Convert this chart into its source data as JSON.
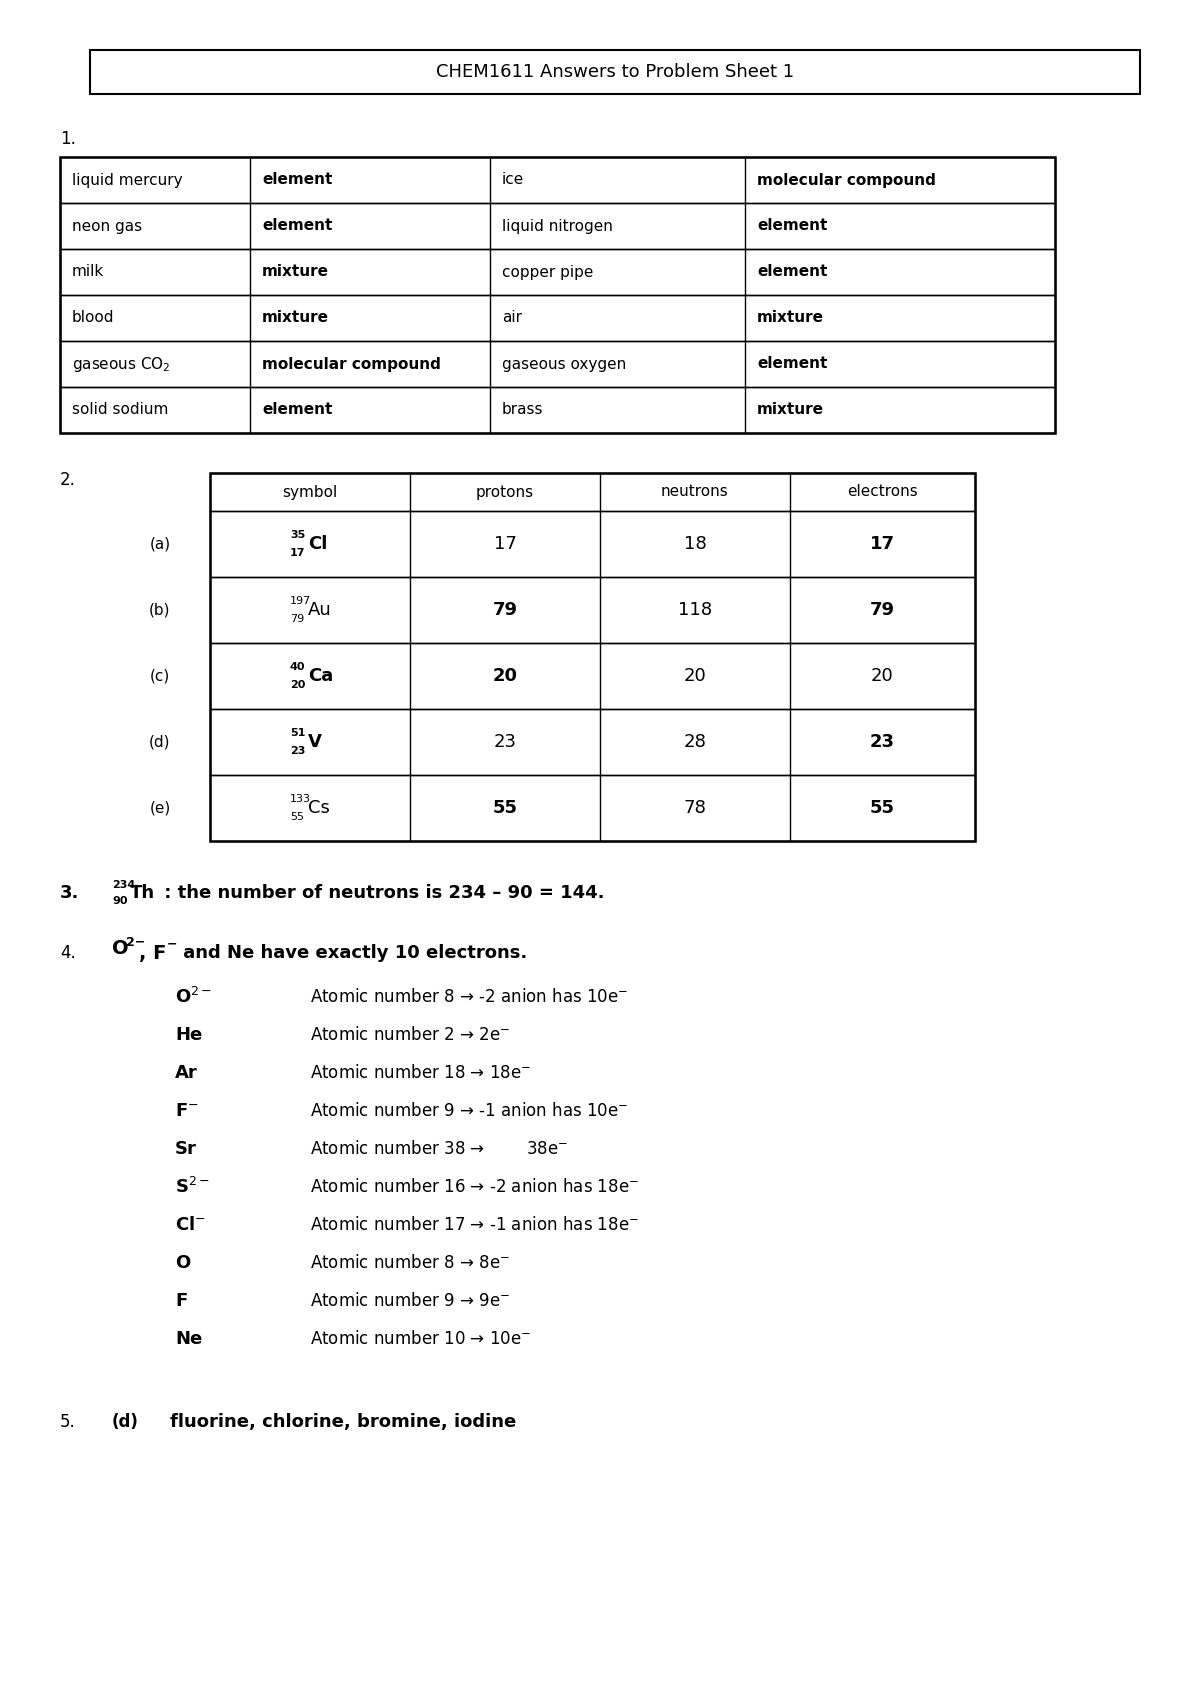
{
  "title": "CHEM1611 Answers to Problem Sheet 1",
  "bg_color": "#ffffff",
  "page_width": 12.0,
  "page_height": 16.97,
  "table1_rows": [
    [
      "liquid mercury",
      "element",
      "ice",
      "molecular compound"
    ],
    [
      "neon gas",
      "element",
      "liquid nitrogen",
      "element"
    ],
    [
      "milk",
      "mixture",
      "copper pipe",
      "element"
    ],
    [
      "blood",
      "mixture",
      "air",
      "mixture"
    ],
    [
      "gaseous CO₂",
      "molecular compound",
      "gaseous oxygen",
      "element"
    ],
    [
      "solid sodium",
      "element",
      "brass",
      "mixture"
    ]
  ],
  "table1_bold_cols": [
    1,
    3
  ],
  "table2_headers": [
    "symbol",
    "protons",
    "neutrons",
    "electrons"
  ],
  "table2_rows": [
    {
      "label": "(a)",
      "symbol_mass": "35",
      "symbol_num": "17",
      "symbol_el": "Cl",
      "sym_bold": true,
      "protons": "17",
      "p_bold": false,
      "neutrons": "18",
      "n_bold": false,
      "electrons": "17",
      "e_bold": true
    },
    {
      "label": "(b)",
      "symbol_mass": "197",
      "symbol_num": "79",
      "symbol_el": "Au",
      "sym_bold": false,
      "protons": "79",
      "p_bold": true,
      "neutrons": "118",
      "n_bold": false,
      "electrons": "79",
      "e_bold": true
    },
    {
      "label": "(c)",
      "symbol_mass": "40",
      "symbol_num": "20",
      "symbol_el": "Ca",
      "sym_bold": true,
      "protons": "20",
      "p_bold": true,
      "neutrons": "20",
      "n_bold": false,
      "electrons": "20",
      "e_bold": false
    },
    {
      "label": "(d)",
      "symbol_mass": "51",
      "symbol_num": "23",
      "symbol_el": "V",
      "sym_bold": true,
      "protons": "23",
      "p_bold": false,
      "neutrons": "28",
      "n_bold": false,
      "electrons": "23",
      "e_bold": true
    },
    {
      "label": "(e)",
      "symbol_mass": "133",
      "symbol_num": "55",
      "symbol_el": "Cs",
      "sym_bold": false,
      "protons": "55",
      "p_bold": true,
      "neutrons": "78",
      "n_bold": false,
      "electrons": "55",
      "e_bold": true
    }
  ],
  "q4_rows": [
    {
      "element": "O$^{2-}$",
      "text": "Atomic number 8 → -2 anion has 10e$^{-}$"
    },
    {
      "element": "He",
      "text": "Atomic number 2 → 2e$^{-}$"
    },
    {
      "element": "Ar",
      "text": "Atomic number 18 → 18e$^{-}$"
    },
    {
      "element": "F$^{-}$",
      "text": "Atomic number 9 → -1 anion has 10e$^{-}$"
    },
    {
      "element": "Sr",
      "text": "Atomic number 38 →        38e$^{-}$"
    },
    {
      "element": "S$^{2-}$",
      "text": "Atomic number 16 → -2 anion has 18e$^{-}$"
    },
    {
      "element": "Cl$^{-}$",
      "text": "Atomic number 17 → -1 anion has 18e$^{-}$"
    },
    {
      "element": "O",
      "text": "Atomic number 8 → 8e$^{-}$"
    },
    {
      "element": "F",
      "text": "Atomic number 9 → 9e$^{-}$"
    },
    {
      "element": "Ne",
      "text": "Atomic number 10 → 10e$^{-}$"
    }
  ]
}
